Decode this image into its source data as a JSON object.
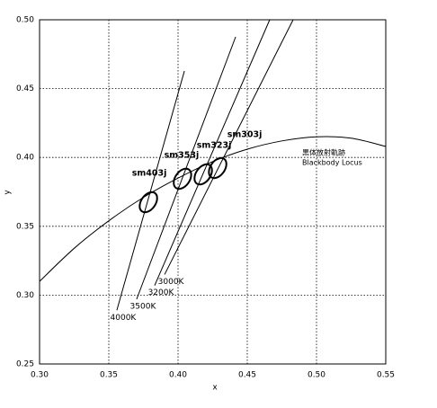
{
  "chart_data": {
    "type": "chromaticity",
    "x_label": "x",
    "y_label": "y",
    "xlim": [
      0.3,
      0.55
    ],
    "ylim": [
      0.25,
      0.5
    ],
    "xticks": [
      {
        "value": 0.3,
        "label": "0.30"
      },
      {
        "value": 0.35,
        "label": "0.35"
      },
      {
        "value": 0.4,
        "label": "0.40"
      },
      {
        "value": 0.45,
        "label": "0.45"
      },
      {
        "value": 0.5,
        "label": "0.50"
      },
      {
        "value": 0.55,
        "label": "0.55"
      }
    ],
    "yticks": [
      {
        "value": 0.25,
        "label": "0.25"
      },
      {
        "value": 0.3,
        "label": "0.30"
      },
      {
        "value": 0.35,
        "label": "0.35"
      },
      {
        "value": 0.4,
        "label": "0.40"
      },
      {
        "value": 0.45,
        "label": "0.45"
      },
      {
        "value": 0.5,
        "label": "0.50"
      }
    ],
    "grid": true,
    "locus": {
      "name": "黒体放射軌跡",
      "name_en": "Blackbody Locus",
      "x": [
        0.3,
        0.325,
        0.35,
        0.375,
        0.4,
        0.425,
        0.45,
        0.475,
        0.5,
        0.525,
        0.55
      ],
      "y": [
        0.31,
        0.334,
        0.354,
        0.371,
        0.385,
        0.397,
        0.406,
        0.412,
        0.415,
        0.414,
        0.408
      ]
    },
    "isotherms": [
      {
        "name": "4000K",
        "x": [
          0.3558,
          0.4046
        ],
        "y": [
          0.289,
          0.4628
        ]
      },
      {
        "name": "3500K",
        "x": [
          0.3701,
          0.4416
        ],
        "y": [
          0.297,
          0.4876
        ]
      },
      {
        "name": "3200K",
        "x": [
          0.3831,
          0.4662
        ],
        "y": [
          0.307,
          0.5
        ]
      },
      {
        "name": "3000K",
        "x": [
          0.3903,
          0.4831
        ],
        "y": [
          0.315,
          0.5
        ]
      }
    ],
    "ellipses": [
      {
        "name": "sm403j",
        "x": 0.3786,
        "y": 0.3675
      },
      {
        "name": "sm353j",
        "x": 0.4032,
        "y": 0.3845
      },
      {
        "name": "sm323j",
        "x": 0.4182,
        "y": 0.3877
      },
      {
        "name": "sm303j",
        "x": 0.4286,
        "y": 0.3923
      }
    ]
  }
}
